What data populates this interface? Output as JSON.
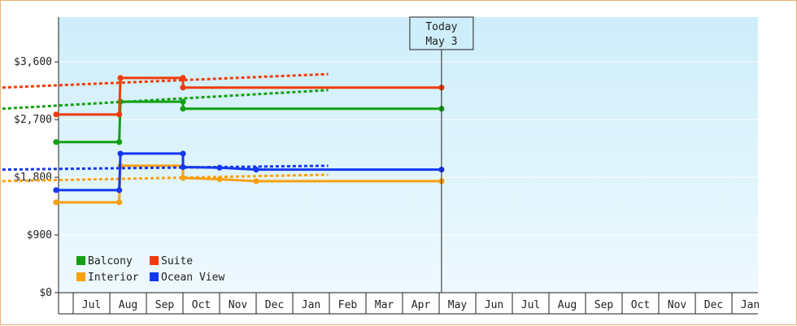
{
  "chart_data": {
    "type": "line",
    "currency": "$",
    "y_ticks": [
      0,
      900,
      1800,
      2700,
      3600
    ],
    "ylim": [
      0,
      4300
    ],
    "x_tick_labels": [
      "Jul",
      "Aug",
      "Sep",
      "Oct",
      "Nov",
      "Dec",
      "Jan",
      "Feb",
      "Mar",
      "Apr",
      "May",
      "Jun",
      "Jul",
      "Aug",
      "Sep",
      "Oct",
      "Nov",
      "Dec",
      "Jan"
    ],
    "today": {
      "line1": "Today",
      "line2": "May 3"
    },
    "colors": {
      "background_top": "#cdeefa",
      "background_bottom": "#eef9fe",
      "grid": "#ffffff",
      "axis": "#222222"
    },
    "series": [
      {
        "name": "Balcony",
        "color": "#14a014",
        "actual": [
          [
            "Jun 17",
            2350
          ],
          [
            "Aug 9",
            2350
          ],
          [
            "Aug 10",
            2980
          ],
          [
            "Oct 1",
            2980
          ],
          [
            "Oct 1",
            2870
          ],
          [
            "May 3",
            2870
          ]
        ],
        "points": [
          [
            "Jun 17",
            2350
          ],
          [
            "Aug 9",
            2350
          ],
          [
            "Aug 10",
            2980
          ],
          [
            "Oct 1",
            2980
          ],
          [
            "Oct 1",
            2870
          ],
          [
            "May 3",
            2870
          ]
        ],
        "forecast": [
          [
            "May 3",
            2870
          ],
          [
            "Jan 31",
            3160
          ]
        ]
      },
      {
        "name": "Suite",
        "color": "#f03c0a",
        "actual": [
          [
            "Jun 17",
            2780
          ],
          [
            "Aug 9",
            2780
          ],
          [
            "Aug 10",
            3350
          ],
          [
            "Oct 1",
            3350
          ],
          [
            "Oct 1",
            3200
          ],
          [
            "May 3",
            3200
          ]
        ],
        "points": [
          [
            "Jun 17",
            2780
          ],
          [
            "Aug 9",
            2780
          ],
          [
            "Aug 10",
            3350
          ],
          [
            "Oct 1",
            3350
          ],
          [
            "Oct 1",
            3200
          ],
          [
            "May 3",
            3200
          ]
        ],
        "forecast": [
          [
            "May 3",
            3200
          ],
          [
            "Jan 31",
            3410
          ]
        ]
      },
      {
        "name": "Interior",
        "color": "#f8a010",
        "actual": [
          [
            "Jun 17",
            1410
          ],
          [
            "Aug 9",
            1410
          ],
          [
            "Aug 10",
            1980
          ],
          [
            "Oct 1",
            1980
          ],
          [
            "Oct 1",
            1790
          ],
          [
            "Nov 1",
            1770
          ],
          [
            "Dec 1",
            1740
          ],
          [
            "May 3",
            1740
          ]
        ],
        "points": [
          [
            "Jun 17",
            1410
          ],
          [
            "Aug 9",
            1410
          ],
          [
            "Aug 10",
            1980
          ],
          [
            "Oct 1",
            1790
          ],
          [
            "Nov 1",
            1770
          ],
          [
            "Dec 1",
            1740
          ],
          [
            "May 3",
            1740
          ]
        ],
        "forecast": [
          [
            "May 3",
            1740
          ],
          [
            "Jan 31",
            1840
          ]
        ]
      },
      {
        "name": "Ocean View",
        "color": "#1438f0",
        "actual": [
          [
            "Jun 17",
            1600
          ],
          [
            "Aug 9",
            1600
          ],
          [
            "Aug 10",
            2170
          ],
          [
            "Oct 1",
            2170
          ],
          [
            "Oct 1",
            1960
          ],
          [
            "Nov 1",
            1950
          ],
          [
            "Dec 1",
            1920
          ],
          [
            "May 3",
            1920
          ]
        ],
        "points": [
          [
            "Jun 17",
            1600
          ],
          [
            "Aug 9",
            1600
          ],
          [
            "Aug 10",
            2170
          ],
          [
            "Oct 1",
            2170
          ],
          [
            "Oct 1",
            1960
          ],
          [
            "Nov 1",
            1950
          ],
          [
            "Dec 1",
            1920
          ],
          [
            "May 3",
            1920
          ]
        ],
        "forecast": [
          [
            "May 3",
            1920
          ],
          [
            "Jan 31",
            1980
          ]
        ]
      }
    ]
  }
}
